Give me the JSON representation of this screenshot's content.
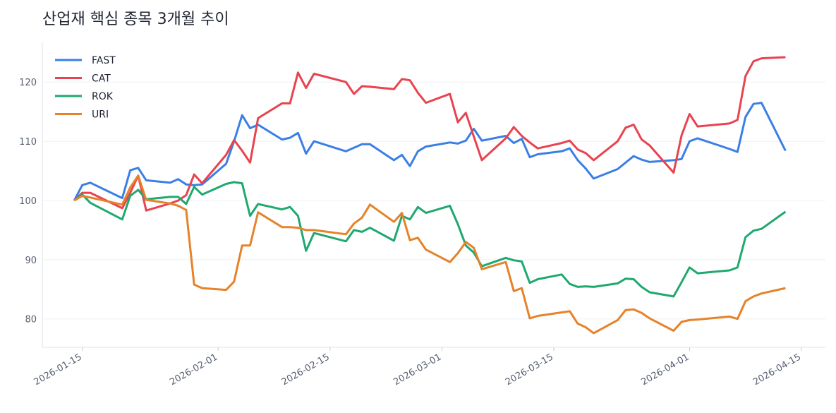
{
  "chart_data": {
    "type": "line",
    "title": "산업재 핵심 종목 3개월 추이",
    "x": [
      "2026-01-14",
      "2026-01-15",
      "2026-01-16",
      "2026-01-20",
      "2026-01-21",
      "2026-01-22",
      "2026-01-23",
      "2026-01-26",
      "2026-01-27",
      "2026-01-28",
      "2026-01-29",
      "2026-01-30",
      "2026-02-02",
      "2026-02-03",
      "2026-02-04",
      "2026-02-05",
      "2026-02-06",
      "2026-02-09",
      "2026-02-10",
      "2026-02-11",
      "2026-02-12",
      "2026-02-13",
      "2026-02-17",
      "2026-02-18",
      "2026-02-19",
      "2026-02-20",
      "2026-02-23",
      "2026-02-24",
      "2026-02-25",
      "2026-02-26",
      "2026-02-27",
      "2026-03-02",
      "2026-03-03",
      "2026-03-04",
      "2026-03-05",
      "2026-03-06",
      "2026-03-09",
      "2026-03-10",
      "2026-03-11",
      "2026-03-12",
      "2026-03-13",
      "2026-03-16",
      "2026-03-17",
      "2026-03-18",
      "2026-03-19",
      "2026-03-20",
      "2026-03-23",
      "2026-03-24",
      "2026-03-25",
      "2026-03-26",
      "2026-03-27",
      "2026-03-30",
      "2026-03-31",
      "2026-04-01",
      "2026-04-02",
      "2026-04-06",
      "2026-04-07",
      "2026-04-08",
      "2026-04-09",
      "2026-04-10",
      "2026-04-13"
    ],
    "series": [
      {
        "name": "FAST",
        "color": "#3a7fe6",
        "values": [
          100,
          102.6,
          103.0,
          100.4,
          105.1,
          105.5,
          103.4,
          103.0,
          103.6,
          102.7,
          102.6,
          102.7,
          106.2,
          110,
          114.4,
          112.2,
          112.8,
          110.3,
          110.6,
          111.4,
          107.9,
          110,
          108.3,
          108.9,
          109.5,
          109.5,
          106.8,
          107.7,
          105.8,
          108.3,
          109.1,
          109.8,
          109.6,
          110.1,
          112.1,
          110.1,
          110.9,
          109.7,
          110.4,
          107.3,
          107.8,
          108.3,
          108.8,
          106.8,
          105.4,
          103.7,
          105.3,
          106.4,
          107.5,
          106.9,
          106.5,
          106.8,
          107,
          110,
          110.5,
          108.7,
          108.2,
          114.1,
          116.3,
          116.5,
          108.4
        ]
      },
      {
        "name": "CAT",
        "color": "#e8434f",
        "values": [
          100,
          101.3,
          101.3,
          98.7,
          101.3,
          104.2,
          98.3,
          99.5,
          100,
          100.9,
          104.4,
          102.9,
          107.7,
          110.2,
          108.4,
          106.4,
          113.9,
          116.4,
          116.4,
          121.6,
          119.0,
          121.4,
          120.0,
          118.0,
          119.3,
          119.2,
          118.8,
          120.5,
          120.3,
          118.2,
          116.5,
          118.0,
          113.2,
          114.8,
          110.8,
          106.8,
          110.5,
          112.4,
          110.9,
          109.8,
          108.8,
          109.7,
          110.1,
          108.6,
          108,
          106.8,
          110,
          112.3,
          112.8,
          110.3,
          109.3,
          104.7,
          111,
          114.6,
          112.5,
          113,
          113.6,
          121,
          123.5,
          124,
          124.2
        ]
      },
      {
        "name": "ROK",
        "color": "#1fa870",
        "values": [
          100,
          101,
          99.6,
          96.8,
          100.8,
          101.8,
          100.2,
          100.6,
          100.6,
          99.4,
          102.3,
          101.0,
          102.8,
          103.1,
          102.9,
          97.4,
          99.4,
          98.5,
          98.9,
          97.4,
          91.5,
          94.5,
          93.1,
          95.0,
          94.7,
          95.4,
          93.2,
          97.4,
          96.8,
          98.9,
          97.9,
          99.1,
          96,
          92.4,
          91.2,
          88.9,
          90.3,
          89.9,
          89.7,
          86.1,
          86.7,
          87.5,
          85.9,
          85.4,
          85.5,
          85.4,
          86,
          86.8,
          86.7,
          85.4,
          84.5,
          83.8,
          86.2,
          88.7,
          87.7,
          88.2,
          88.7,
          93.8,
          94.9,
          95.2,
          98.1
        ]
      },
      {
        "name": "URI",
        "color": "#e5822a",
        "values": [
          100,
          100.8,
          100.5,
          99.3,
          102.2,
          104.2,
          100.1,
          99.5,
          99.1,
          98.4,
          85.8,
          85.2,
          84.9,
          86.3,
          92.4,
          92.4,
          98.0,
          95.5,
          95.5,
          95.4,
          95,
          95,
          94.3,
          96.1,
          97.1,
          99.3,
          96.4,
          97.9,
          93.3,
          93.7,
          91.7,
          89.6,
          91.1,
          93.0,
          92.0,
          88.4,
          89.6,
          84.7,
          85.2,
          80.1,
          80.5,
          81.1,
          81.3,
          79.2,
          78.6,
          77.6,
          79.8,
          81.5,
          81.6,
          81.0,
          80.1,
          78,
          79.5,
          79.8,
          79.9,
          80.4,
          80,
          83,
          83.8,
          84.3,
          85.2
        ]
      }
    ],
    "xlim": [
      "2026-01-10",
      "2026-04-18"
    ],
    "xticks": [
      "2026-01-15",
      "2026-02-01",
      "2026-02-15",
      "2026-03-01",
      "2026-03-15",
      "2026-04-01",
      "2026-04-15"
    ],
    "ylim": [
      75.2,
      126.7
    ],
    "yticks": [
      80,
      90,
      100,
      110,
      120
    ],
    "grid": true,
    "legend": "upper-left"
  }
}
